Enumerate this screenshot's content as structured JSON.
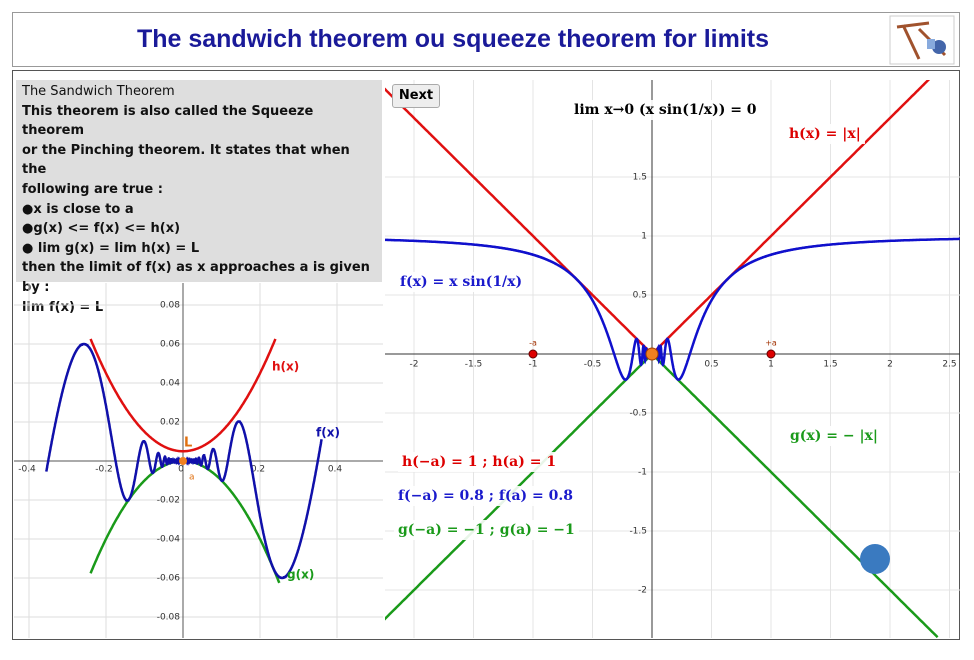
{
  "header": {
    "title": "The sandwich theorem ou squeeze theorem for limits"
  },
  "theorem": {
    "heading": "The Sandwich Theorem",
    "lines": [
      "This theorem is also called the Squeeze theorem",
      "or the Pinching theorem. It states that when the",
      "following are true :",
      "●x is close to a",
      "●g(x) <= f(x) <= h(x)",
      "● lim g(x) = lim h(x) = L",
      "then the limit of f(x) as x approaches a is given by :",
      "lim f(x) = L"
    ]
  },
  "left_graph": {
    "xticks": [
      -0.4,
      -0.2,
      0,
      0.2,
      0.4
    ],
    "yticks": [
      -0.08,
      -0.06,
      -0.04,
      -0.02,
      0.02,
      0.04,
      0.06,
      0.08
    ],
    "labels": {
      "h": "h(x)",
      "f": "f(x)",
      "g": "g(x)",
      "L": "L",
      "a": "a"
    }
  },
  "right_graph": {
    "button": "Next",
    "limit": "lim x→0 (x sin(1/x)) = 0",
    "h": "h(x) = |x|",
    "f": "f(x) = x sin(1/x)",
    "g": "g(x) = − |x|",
    "point_minus": "-a",
    "point_plus": "+a",
    "values": [
      "h(−a) = 1 ; h(a) = 1",
      "f(−a) = 0.8 ; f(a) = 0.8",
      "g(−a) = −1 ; g(a) = −1"
    ],
    "xticks": [
      -2,
      -1.5,
      -1,
      -0.5,
      0.5,
      1,
      1.5,
      2,
      2.5
    ],
    "yticks": [
      -2,
      -1.5,
      -1,
      -0.5,
      0.5,
      1,
      1.5
    ]
  }
}
